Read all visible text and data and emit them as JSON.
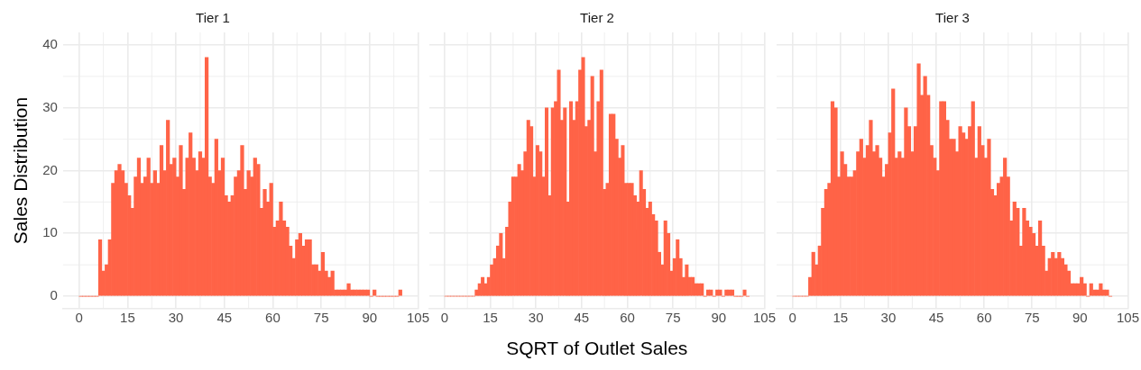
{
  "chart_data": [
    {
      "type": "histogram",
      "title": "Tier 1",
      "ylabel": "Sales Distribution",
      "color": "#ff6347",
      "grid": true,
      "xlim": [
        -5,
        105
      ],
      "xticks": [
        0,
        15,
        30,
        45,
        60,
        75,
        90,
        105
      ],
      "ylim": [
        -2,
        42
      ],
      "yticks": [
        0,
        10,
        20,
        30,
        40
      ],
      "bins": [
        0,
        1,
        2,
        3,
        4,
        5,
        6,
        7,
        8,
        9,
        10,
        11,
        12,
        13,
        14,
        15,
        16,
        17,
        18,
        19,
        20,
        21,
        22,
        23,
        24,
        25,
        26,
        27,
        28,
        29,
        30,
        31,
        32,
        33,
        34,
        35,
        36,
        37,
        38,
        39,
        40,
        41,
        42,
        43,
        44,
        45,
        46,
        47,
        48,
        49,
        50,
        51,
        52,
        53,
        54,
        55,
        56,
        57,
        58,
        59,
        60,
        61,
        62,
        63,
        64,
        65,
        66,
        67,
        68,
        69,
        70,
        71,
        72,
        73,
        74,
        75,
        76,
        77,
        78,
        79,
        80,
        81,
        82,
        83,
        84,
        85,
        86,
        87,
        88,
        89,
        90,
        91,
        92,
        93,
        94,
        95,
        96,
        97,
        98,
        99,
        100
      ],
      "values": [
        0,
        0,
        0,
        0,
        0,
        0,
        9,
        4,
        5,
        9,
        18,
        20,
        21,
        20,
        18,
        16,
        14,
        19,
        22,
        18,
        19,
        22,
        18,
        20,
        18,
        24,
        20,
        28,
        21,
        22,
        19,
        24,
        17,
        22,
        26,
        22,
        20,
        23,
        22,
        38,
        19,
        18,
        25,
        20,
        22,
        16,
        15,
        16,
        19,
        20,
        24,
        17,
        20,
        19,
        22,
        21,
        14,
        17,
        15,
        18,
        11,
        12,
        15,
        12,
        11,
        8,
        6,
        9,
        10,
        8,
        9,
        9,
        5,
        5,
        4,
        7,
        4,
        3,
        4,
        1,
        1,
        1,
        1,
        2,
        1,
        1,
        1,
        1,
        1,
        1,
        0,
        1,
        0,
        0,
        0,
        0,
        0,
        0,
        0,
        1
      ]
    },
    {
      "type": "histogram",
      "title": "Tier 2",
      "xlabel": "SQRT of Outlet Sales",
      "color": "#ff6347",
      "grid": true,
      "tick_labels": "x",
      "xlim": [
        -5,
        105
      ],
      "xticks": [
        0,
        15,
        30,
        45,
        60,
        75,
        90,
        105
      ],
      "ylim": [
        -2,
        42
      ],
      "yticks": [
        0,
        10,
        20,
        30,
        40
      ],
      "bins": [
        0,
        1,
        2,
        3,
        4,
        5,
        6,
        7,
        8,
        9,
        10,
        11,
        12,
        13,
        14,
        15,
        16,
        17,
        18,
        19,
        20,
        21,
        22,
        23,
        24,
        25,
        26,
        27,
        28,
        29,
        30,
        31,
        32,
        33,
        34,
        35,
        36,
        37,
        38,
        39,
        40,
        41,
        42,
        43,
        44,
        45,
        46,
        47,
        48,
        49,
        50,
        51,
        52,
        53,
        54,
        55,
        56,
        57,
        58,
        59,
        60,
        61,
        62,
        63,
        64,
        65,
        66,
        67,
        68,
        69,
        70,
        71,
        72,
        73,
        74,
        75,
        76,
        77,
        78,
        79,
        80,
        81,
        82,
        83,
        84,
        85,
        86,
        87,
        88,
        89,
        90,
        91,
        92,
        93,
        94,
        95,
        96,
        97,
        98,
        99,
        100
      ],
      "values": [
        0,
        0,
        0,
        0,
        0,
        0,
        0,
        0,
        0,
        0,
        1,
        2,
        3,
        2,
        3,
        5,
        6,
        8,
        10,
        6,
        11,
        15,
        19,
        19,
        21,
        20,
        23,
        28,
        27,
        19,
        24,
        23,
        19,
        30,
        16,
        30,
        31,
        36,
        28,
        30,
        15,
        31,
        28,
        31,
        36,
        38,
        27,
        28,
        35,
        23,
        31,
        36,
        17,
        18,
        29,
        29,
        25,
        22,
        24,
        18,
        18,
        18,
        16,
        15,
        20,
        17,
        14,
        15,
        13,
        12,
        7,
        5,
        12,
        10,
        4,
        6,
        9,
        6,
        3,
        5,
        3,
        3,
        2,
        2,
        2,
        0,
        1,
        1,
        0,
        1,
        1,
        0,
        1,
        1,
        1,
        0,
        0,
        0,
        1,
        0
      ]
    },
    {
      "type": "histogram",
      "title": "Tier 3",
      "color": "#ff6347",
      "grid": true,
      "tick_labels": "x",
      "xlim": [
        -5,
        105
      ],
      "xticks": [
        0,
        15,
        30,
        45,
        60,
        75,
        90,
        105
      ],
      "ylim": [
        -2,
        42
      ],
      "yticks": [
        0,
        10,
        20,
        30,
        40
      ],
      "bins": [
        0,
        1,
        2,
        3,
        4,
        5,
        6,
        7,
        8,
        9,
        10,
        11,
        12,
        13,
        14,
        15,
        16,
        17,
        18,
        19,
        20,
        21,
        22,
        23,
        24,
        25,
        26,
        27,
        28,
        29,
        30,
        31,
        32,
        33,
        34,
        35,
        36,
        37,
        38,
        39,
        40,
        41,
        42,
        43,
        44,
        45,
        46,
        47,
        48,
        49,
        50,
        51,
        52,
        53,
        54,
        55,
        56,
        57,
        58,
        59,
        60,
        61,
        62,
        63,
        64,
        65,
        66,
        67,
        68,
        69,
        70,
        71,
        72,
        73,
        74,
        75,
        76,
        77,
        78,
        79,
        80,
        81,
        82,
        83,
        84,
        85,
        86,
        87,
        88,
        89,
        90,
        91,
        92,
        93,
        94,
        95,
        96,
        97,
        98,
        99,
        100
      ],
      "values": [
        0,
        0,
        0,
        0,
        0,
        3,
        7,
        5,
        8,
        14,
        17,
        18,
        31,
        30,
        19,
        23,
        21,
        19,
        19,
        20,
        23,
        25,
        22,
        24,
        28,
        23,
        24,
        22,
        19,
        21,
        26,
        33,
        22,
        23,
        22,
        30,
        27,
        23,
        27,
        37,
        32,
        35,
        32,
        24,
        22,
        20,
        31,
        31,
        28,
        25,
        25,
        23,
        27,
        26,
        25,
        27,
        31,
        22,
        27,
        24,
        22,
        25,
        17,
        16,
        18,
        19,
        22,
        19,
        12,
        15,
        14,
        8,
        14,
        12,
        11,
        10,
        8,
        12,
        8,
        4,
        6,
        7,
        6,
        7,
        6,
        5,
        4,
        2,
        2,
        2,
        3,
        2,
        0,
        2,
        1,
        1,
        2,
        1,
        1,
        0
      ]
    }
  ]
}
